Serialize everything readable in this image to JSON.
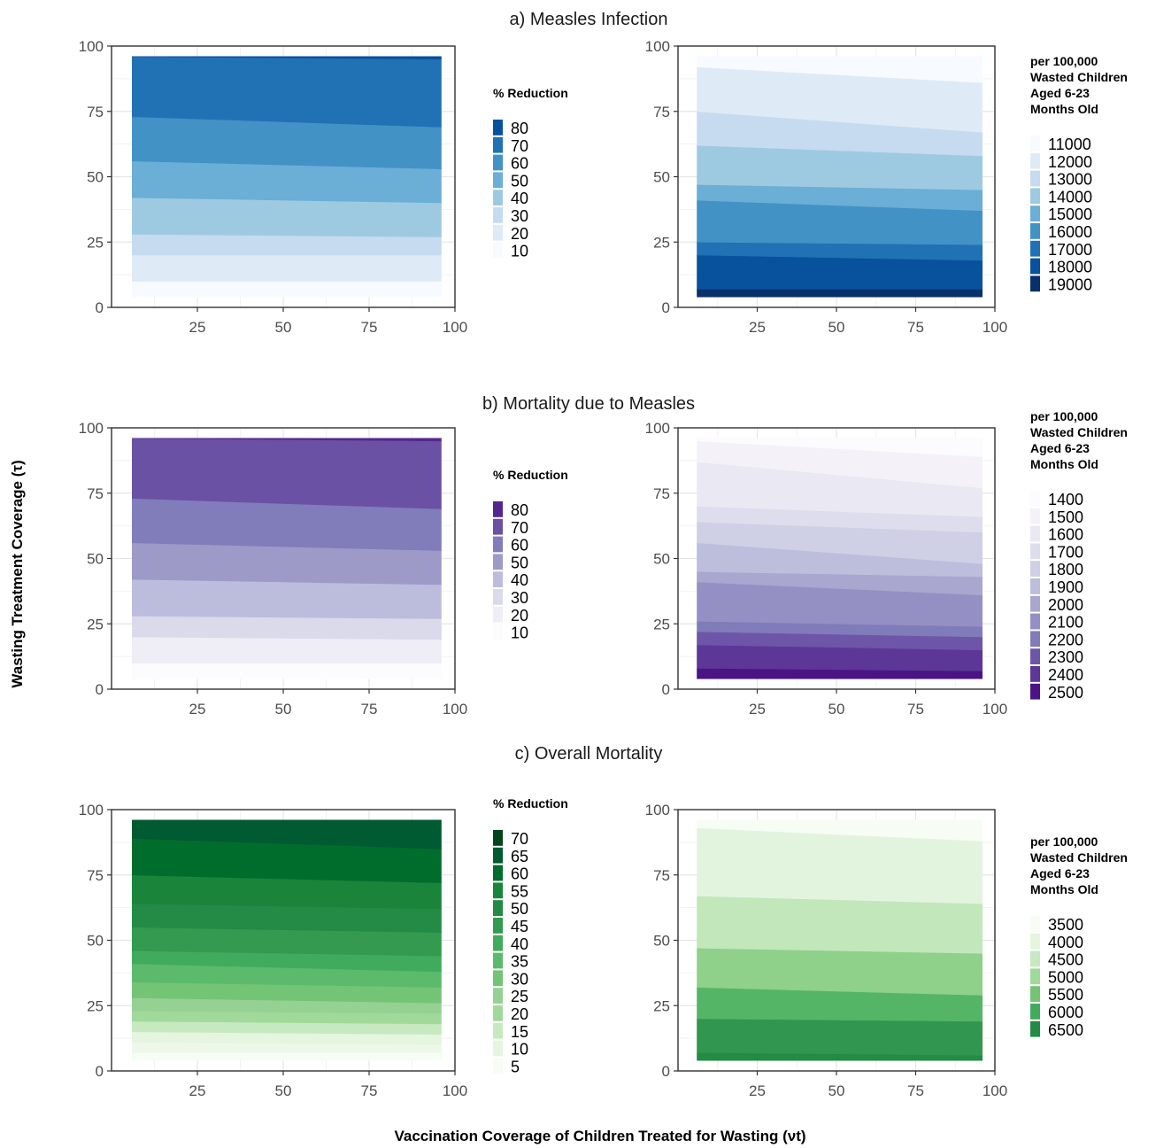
{
  "figure": {
    "y_label": "Wasting Treatment Coverage (τ)",
    "x_label": "Vaccination Coverage of Children Treated for Wasting (νt)"
  },
  "chart_data": [
    {
      "id": "a-left",
      "type": "area",
      "row_title": "a) Measles Infection",
      "x": [
        6,
        96
      ],
      "xlim": [
        0,
        100
      ],
      "ylim": [
        0,
        100
      ],
      "x_ticks": [
        "25",
        "50",
        "75",
        "100"
      ],
      "y_ticks": [
        "0",
        "25",
        "50",
        "75",
        "100"
      ],
      "grid": true,
      "legend_position": "right",
      "legend": {
        "title": [
          "% Reduction"
        ],
        "levels": [
          "80",
          "70",
          "60",
          "50",
          "40",
          "30",
          "20",
          "10"
        ],
        "colors": [
          "#08519c",
          "#2171b5",
          "#4292c6",
          "#6baed6",
          "#9ecae1",
          "#c6dbef",
          "#deebf7",
          "#f7fbff"
        ]
      },
      "bands": [
        {
          "lower": [
            4,
            4
          ],
          "upper": [
            10,
            10
          ],
          "color": "#f7fbff"
        },
        {
          "lower": [
            10,
            10
          ],
          "upper": [
            20,
            20
          ],
          "color": "#deebf7"
        },
        {
          "lower": [
            20,
            20
          ],
          "upper": [
            28,
            27
          ],
          "color": "#c6dbef"
        },
        {
          "lower": [
            28,
            27
          ],
          "upper": [
            42,
            40
          ],
          "color": "#9ecae1"
        },
        {
          "lower": [
            42,
            40
          ],
          "upper": [
            56,
            53
          ],
          "color": "#6baed6"
        },
        {
          "lower": [
            56,
            53
          ],
          "upper": [
            73,
            69
          ],
          "color": "#4292c6"
        },
        {
          "lower": [
            73,
            69
          ],
          "upper": [
            96,
            95
          ],
          "color": "#2171b5"
        },
        {
          "lower": [
            96,
            95
          ],
          "upper": [
            96,
            96
          ],
          "color": "#08519c"
        }
      ]
    },
    {
      "id": "a-right",
      "type": "area",
      "x": [
        6,
        96
      ],
      "xlim": [
        0,
        100
      ],
      "ylim": [
        0,
        100
      ],
      "x_ticks": [
        "25",
        "50",
        "75",
        "100"
      ],
      "y_ticks": [
        "0",
        "25",
        "50",
        "75",
        "100"
      ],
      "grid": true,
      "legend_position": "right",
      "legend": {
        "title": [
          "per 100,000",
          "Wasted Children",
          "Aged 6-23",
          "Months Old"
        ],
        "levels": [
          "11000",
          "12000",
          "13000",
          "14000",
          "15000",
          "16000",
          "17000",
          "18000",
          "19000"
        ],
        "colors": [
          "#f7fbff",
          "#deebf7",
          "#c6dbef",
          "#9ecae1",
          "#6baed6",
          "#4292c6",
          "#2171b5",
          "#08519c",
          "#08306b"
        ]
      },
      "bands": [
        {
          "lower": [
            4,
            4
          ],
          "upper": [
            7,
            7
          ],
          "color": "#08306b"
        },
        {
          "lower": [
            7,
            7
          ],
          "upper": [
            20,
            18
          ],
          "color": "#08519c"
        },
        {
          "lower": [
            20,
            18
          ],
          "upper": [
            25,
            24
          ],
          "color": "#2171b5"
        },
        {
          "lower": [
            25,
            24
          ],
          "upper": [
            41,
            37
          ],
          "color": "#4292c6"
        },
        {
          "lower": [
            41,
            37
          ],
          "upper": [
            47,
            45
          ],
          "color": "#6baed6"
        },
        {
          "lower": [
            47,
            45
          ],
          "upper": [
            62,
            58
          ],
          "color": "#9ecae1"
        },
        {
          "lower": [
            62,
            58
          ],
          "upper": [
            75,
            67
          ],
          "color": "#c6dbef"
        },
        {
          "lower": [
            75,
            67
          ],
          "upper": [
            92,
            86
          ],
          "color": "#deebf7"
        },
        {
          "lower": [
            92,
            86
          ],
          "upper": [
            96,
            96
          ],
          "color": "#f7fbff"
        }
      ]
    },
    {
      "id": "b-left",
      "type": "area",
      "row_title": "b) Mortality due to Measles",
      "x": [
        6,
        96
      ],
      "xlim": [
        0,
        100
      ],
      "ylim": [
        0,
        100
      ],
      "x_ticks": [
        "25",
        "50",
        "75",
        "100"
      ],
      "y_ticks": [
        "0",
        "25",
        "50",
        "75",
        "100"
      ],
      "grid": true,
      "legend_position": "right",
      "legend": {
        "title": [
          "% Reduction"
        ],
        "levels": [
          "80",
          "70",
          "60",
          "50",
          "40",
          "30",
          "20",
          "10"
        ],
        "colors": [
          "#54278f",
          "#6a51a3",
          "#807dba",
          "#9e9ac8",
          "#bcbddc",
          "#dadaeb",
          "#efedf5",
          "#fcfbfd"
        ]
      },
      "bands": [
        {
          "lower": [
            4,
            4
          ],
          "upper": [
            10,
            10
          ],
          "color": "#fcfbfd"
        },
        {
          "lower": [
            10,
            10
          ],
          "upper": [
            20,
            19
          ],
          "color": "#efedf5"
        },
        {
          "lower": [
            20,
            19
          ],
          "upper": [
            28,
            27
          ],
          "color": "#dadaeb"
        },
        {
          "lower": [
            28,
            27
          ],
          "upper": [
            42,
            40
          ],
          "color": "#bcbddc"
        },
        {
          "lower": [
            42,
            40
          ],
          "upper": [
            56,
            53
          ],
          "color": "#9e9ac8"
        },
        {
          "lower": [
            56,
            53
          ],
          "upper": [
            73,
            69
          ],
          "color": "#807dba"
        },
        {
          "lower": [
            73,
            69
          ],
          "upper": [
            96,
            95
          ],
          "color": "#6a51a3"
        },
        {
          "lower": [
            96,
            95
          ],
          "upper": [
            96,
            96
          ],
          "color": "#54278f"
        }
      ]
    },
    {
      "id": "b-right",
      "type": "area",
      "x": [
        6,
        96
      ],
      "xlim": [
        0,
        100
      ],
      "ylim": [
        0,
        100
      ],
      "x_ticks": [
        "25",
        "50",
        "75",
        "100"
      ],
      "y_ticks": [
        "0",
        "25",
        "50",
        "75",
        "100"
      ],
      "grid": true,
      "legend_position": "right",
      "legend": {
        "title": [
          "per 100,000",
          "Wasted Children",
          "Aged 6-23",
          "Months Old"
        ],
        "levels": [
          "1400",
          "1500",
          "1600",
          "1700",
          "1800",
          "1900",
          "2000",
          "2100",
          "2200",
          "2300",
          "2400",
          "2500"
        ],
        "colors": [
          "#fcfbfd",
          "#f4f2f8",
          "#eae8f3",
          "#dedded",
          "#cfcfe5",
          "#bdbddc",
          "#a9a6cf",
          "#9490c3",
          "#807cba",
          "#6d56a7",
          "#5d3797",
          "#4a1486"
        ]
      },
      "bands": [
        {
          "lower": [
            4,
            4
          ],
          "upper": [
            8,
            7
          ],
          "color": "#4a1486"
        },
        {
          "lower": [
            8,
            7
          ],
          "upper": [
            17,
            15
          ],
          "color": "#5d3797"
        },
        {
          "lower": [
            17,
            15
          ],
          "upper": [
            22,
            20
          ],
          "color": "#6d56a7"
        },
        {
          "lower": [
            22,
            20
          ],
          "upper": [
            26,
            24
          ],
          "color": "#807cba"
        },
        {
          "lower": [
            26,
            24
          ],
          "upper": [
            41,
            36
          ],
          "color": "#9490c3"
        },
        {
          "lower": [
            41,
            36
          ],
          "upper": [
            45,
            43
          ],
          "color": "#a9a6cf"
        },
        {
          "lower": [
            45,
            43
          ],
          "upper": [
            56,
            48
          ],
          "color": "#bdbddc"
        },
        {
          "lower": [
            56,
            48
          ],
          "upper": [
            64,
            60
          ],
          "color": "#cfcfe5"
        },
        {
          "lower": [
            64,
            60
          ],
          "upper": [
            70,
            66
          ],
          "color": "#dedded"
        },
        {
          "lower": [
            70,
            66
          ],
          "upper": [
            87,
            77
          ],
          "color": "#eae8f3"
        },
        {
          "lower": [
            87,
            77
          ],
          "upper": [
            95,
            89
          ],
          "color": "#f4f2f8"
        },
        {
          "lower": [
            95,
            89
          ],
          "upper": [
            96,
            96
          ],
          "color": "#fcfbfd"
        }
      ]
    },
    {
      "id": "c-left",
      "type": "area",
      "row_title": "c) Overall Mortality",
      "x": [
        6,
        96
      ],
      "xlim": [
        0,
        100
      ],
      "ylim": [
        0,
        100
      ],
      "x_ticks": [
        "25",
        "50",
        "75",
        "100"
      ],
      "y_ticks": [
        "0",
        "25",
        "50",
        "75",
        "100"
      ],
      "grid": true,
      "legend_position": "right",
      "legend": {
        "title": [
          "% Reduction"
        ],
        "levels": [
          "70",
          "65",
          "60",
          "55",
          "50",
          "45",
          "40",
          "35",
          "30",
          "25",
          "20",
          "15",
          "10",
          "5"
        ],
        "colors": [
          "#00441b",
          "#005a32",
          "#006d2c",
          "#1a843b",
          "#238b45",
          "#339a50",
          "#41ab5d",
          "#5bba6b",
          "#74c476",
          "#95d193",
          "#a1d99b",
          "#c7e9c0",
          "#e5f5e0",
          "#f7fcf5"
        ]
      },
      "bands": [
        {
          "lower": [
            4,
            4
          ],
          "upper": [
            7,
            7
          ],
          "color": "#f7fcf5"
        },
        {
          "lower": [
            7,
            7
          ],
          "upper": [
            11,
            10
          ],
          "color": "#eef8ea"
        },
        {
          "lower": [
            11,
            10
          ],
          "upper": [
            15,
            14
          ],
          "color": "#e5f5e0"
        },
        {
          "lower": [
            15,
            14
          ],
          "upper": [
            19,
            18
          ],
          "color": "#c7e9c0"
        },
        {
          "lower": [
            19,
            18
          ],
          "upper": [
            23,
            22
          ],
          "color": "#a1d99b"
        },
        {
          "lower": [
            23,
            22
          ],
          "upper": [
            28,
            26
          ],
          "color": "#95d193"
        },
        {
          "lower": [
            28,
            26
          ],
          "upper": [
            34,
            32
          ],
          "color": "#74c476"
        },
        {
          "lower": [
            34,
            32
          ],
          "upper": [
            41,
            38
          ],
          "color": "#5bba6b"
        },
        {
          "lower": [
            41,
            38
          ],
          "upper": [
            46,
            44
          ],
          "color": "#41ab5d"
        },
        {
          "lower": [
            46,
            44
          ],
          "upper": [
            55,
            53
          ],
          "color": "#339a50"
        },
        {
          "lower": [
            55,
            53
          ],
          "upper": [
            64,
            62
          ],
          "color": "#238b45"
        },
        {
          "lower": [
            64,
            62
          ],
          "upper": [
            75,
            72
          ],
          "color": "#1a843b"
        },
        {
          "lower": [
            75,
            72
          ],
          "upper": [
            89,
            85
          ],
          "color": "#006d2c"
        },
        {
          "lower": [
            89,
            85
          ],
          "upper": [
            96,
            96
          ],
          "color": "#005a32"
        }
      ]
    },
    {
      "id": "c-right",
      "type": "area",
      "x": [
        6,
        96
      ],
      "xlim": [
        0,
        100
      ],
      "ylim": [
        0,
        100
      ],
      "x_ticks": [
        "25",
        "50",
        "75",
        "100"
      ],
      "y_ticks": [
        "0",
        "25",
        "50",
        "75",
        "100"
      ],
      "grid": true,
      "legend_position": "right",
      "legend": {
        "title": [
          "per 100,000",
          "Wasted Children",
          "Aged 6-23",
          "Months Old"
        ],
        "levels": [
          "3500",
          "4000",
          "4500",
          "5000",
          "5500",
          "6000",
          "6500"
        ],
        "colors": [
          "#f7fcf5",
          "#e5f5e0",
          "#c7e9c0",
          "#a1d99b",
          "#74c476",
          "#41ab5d",
          "#238b45"
        ]
      },
      "bands": [
        {
          "lower": [
            4,
            4
          ],
          "upper": [
            7,
            6
          ],
          "color": "#238b45"
        },
        {
          "lower": [
            7,
            6
          ],
          "upper": [
            20,
            19
          ],
          "color": "#31964f"
        },
        {
          "lower": [
            20,
            19
          ],
          "upper": [
            32,
            29
          ],
          "color": "#55b567"
        },
        {
          "lower": [
            32,
            29
          ],
          "upper": [
            47,
            45
          ],
          "color": "#8fd08a"
        },
        {
          "lower": [
            47,
            45
          ],
          "upper": [
            67,
            64
          ],
          "color": "#c1e7ba"
        },
        {
          "lower": [
            67,
            64
          ],
          "upper": [
            93,
            88
          ],
          "color": "#e3f4de"
        },
        {
          "lower": [
            93,
            88
          ],
          "upper": [
            96,
            96
          ],
          "color": "#f7fcf5"
        }
      ]
    }
  ]
}
